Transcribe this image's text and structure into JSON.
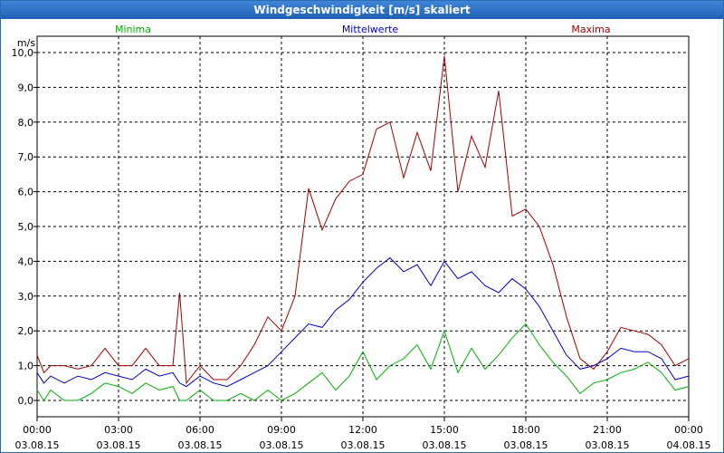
{
  "window": {
    "title": "Windgeschwindigkeit [m/s] skaliert"
  },
  "chart_data": {
    "type": "line",
    "title": "Windgeschwindigkeit [m/s] skaliert",
    "ylabel": "m/s",
    "ylim": [
      0,
      10
    ],
    "xlim_hours": [
      0,
      24
    ],
    "grid": true,
    "yticks": [
      "0,0",
      "1,0",
      "2,0",
      "3,0",
      "4,0",
      "5,0",
      "6,0",
      "7,0",
      "8,0",
      "9,0",
      "10,0"
    ],
    "xticks": [
      {
        "time": "00:00",
        "date": "03.08.15"
      },
      {
        "time": "03:00",
        "date": "03.08.15"
      },
      {
        "time": "06:00",
        "date": "03.08.15"
      },
      {
        "time": "09:00",
        "date": "03.08.15"
      },
      {
        "time": "12:00",
        "date": "03.08.15"
      },
      {
        "time": "15:00",
        "date": "03.08.15"
      },
      {
        "time": "18:00",
        "date": "03.08.15"
      },
      {
        "time": "21:00",
        "date": "03.08.15"
      },
      {
        "time": "00:00",
        "date": "04.08.15"
      }
    ],
    "series": [
      {
        "name": "Minima",
        "color": "#00b000",
        "x": [
          0,
          0.25,
          0.5,
          1,
          1.5,
          2,
          2.5,
          3,
          3.5,
          4,
          4.5,
          5,
          5.25,
          5.5,
          6,
          6.5,
          7,
          7.5,
          8,
          8.5,
          9,
          9.5,
          10,
          10.5,
          11,
          11.5,
          12,
          12.5,
          13,
          13.5,
          14,
          14.5,
          15,
          15.5,
          16,
          16.5,
          17,
          17.5,
          18,
          18.5,
          19,
          19.5,
          20,
          20.5,
          21,
          21.5,
          22,
          22.5,
          23,
          23.5,
          24
        ],
        "values": [
          0.3,
          0.0,
          0.3,
          0.0,
          0.0,
          0.2,
          0.5,
          0.4,
          0.2,
          0.5,
          0.3,
          0.4,
          0.0,
          0.0,
          0.3,
          0.0,
          0.0,
          0.2,
          0.0,
          0.3,
          0.0,
          0.2,
          0.5,
          0.8,
          0.3,
          0.7,
          1.4,
          0.6,
          1.0,
          1.2,
          1.6,
          0.9,
          2.0,
          0.8,
          1.5,
          0.9,
          1.3,
          1.8,
          2.2,
          1.6,
          1.1,
          0.7,
          0.2,
          0.5,
          0.6,
          0.8,
          0.9,
          1.1,
          0.8,
          0.3,
          0.4
        ]
      },
      {
        "name": "Mittelwerte",
        "color": "#0000c8",
        "x": [
          0,
          0.25,
          0.5,
          1,
          1.5,
          2,
          2.5,
          3,
          3.5,
          4,
          4.5,
          5,
          5.25,
          5.5,
          6,
          6.5,
          7,
          7.5,
          8,
          8.5,
          9,
          9.5,
          10,
          10.5,
          11,
          11.5,
          12,
          12.5,
          13,
          13.5,
          14,
          14.5,
          15,
          15.5,
          16,
          16.5,
          17,
          17.5,
          18,
          18.5,
          19,
          19.5,
          20,
          20.5,
          21,
          21.5,
          22,
          22.5,
          23,
          23.5,
          24
        ],
        "values": [
          0.8,
          0.5,
          0.7,
          0.5,
          0.7,
          0.6,
          0.8,
          0.7,
          0.6,
          0.9,
          0.7,
          0.8,
          0.5,
          0.4,
          0.7,
          0.5,
          0.4,
          0.6,
          0.8,
          1.0,
          1.4,
          1.8,
          2.2,
          2.1,
          2.6,
          2.9,
          3.4,
          3.8,
          4.1,
          3.7,
          3.9,
          3.3,
          4.0,
          3.5,
          3.7,
          3.3,
          3.1,
          3.5,
          3.2,
          2.7,
          2.0,
          1.3,
          0.9,
          1.0,
          1.2,
          1.5,
          1.4,
          1.4,
          1.2,
          0.6,
          0.7
        ]
      },
      {
        "name": "Maxima",
        "color": "#a00000",
        "x": [
          0,
          0.25,
          0.5,
          1,
          1.5,
          2,
          2.5,
          3,
          3.5,
          4,
          4.5,
          5,
          5.25,
          5.5,
          6,
          6.5,
          7,
          7.5,
          8,
          8.5,
          9,
          9.5,
          10,
          10.5,
          11,
          11.5,
          12,
          12.5,
          13,
          13.5,
          14,
          14.5,
          15,
          15.5,
          16,
          16.5,
          17,
          17.5,
          18,
          18.5,
          19,
          19.5,
          20,
          20.5,
          21,
          21.5,
          22,
          22.5,
          23,
          23.5,
          24
        ],
        "values": [
          1.3,
          0.8,
          1.0,
          1.0,
          0.9,
          1.0,
          1.5,
          1.0,
          1.0,
          1.5,
          1.0,
          1.0,
          3.1,
          0.5,
          1.0,
          0.6,
          0.6,
          1.0,
          1.6,
          2.4,
          2.0,
          3.0,
          6.1,
          4.9,
          5.8,
          6.3,
          6.5,
          7.8,
          8.0,
          6.4,
          7.7,
          6.6,
          9.9,
          6.0,
          7.6,
          6.7,
          8.9,
          5.3,
          5.5,
          5.0,
          3.9,
          2.4,
          1.2,
          0.9,
          1.4,
          2.1,
          2.0,
          1.9,
          1.6,
          1.0,
          1.2
        ]
      }
    ]
  }
}
